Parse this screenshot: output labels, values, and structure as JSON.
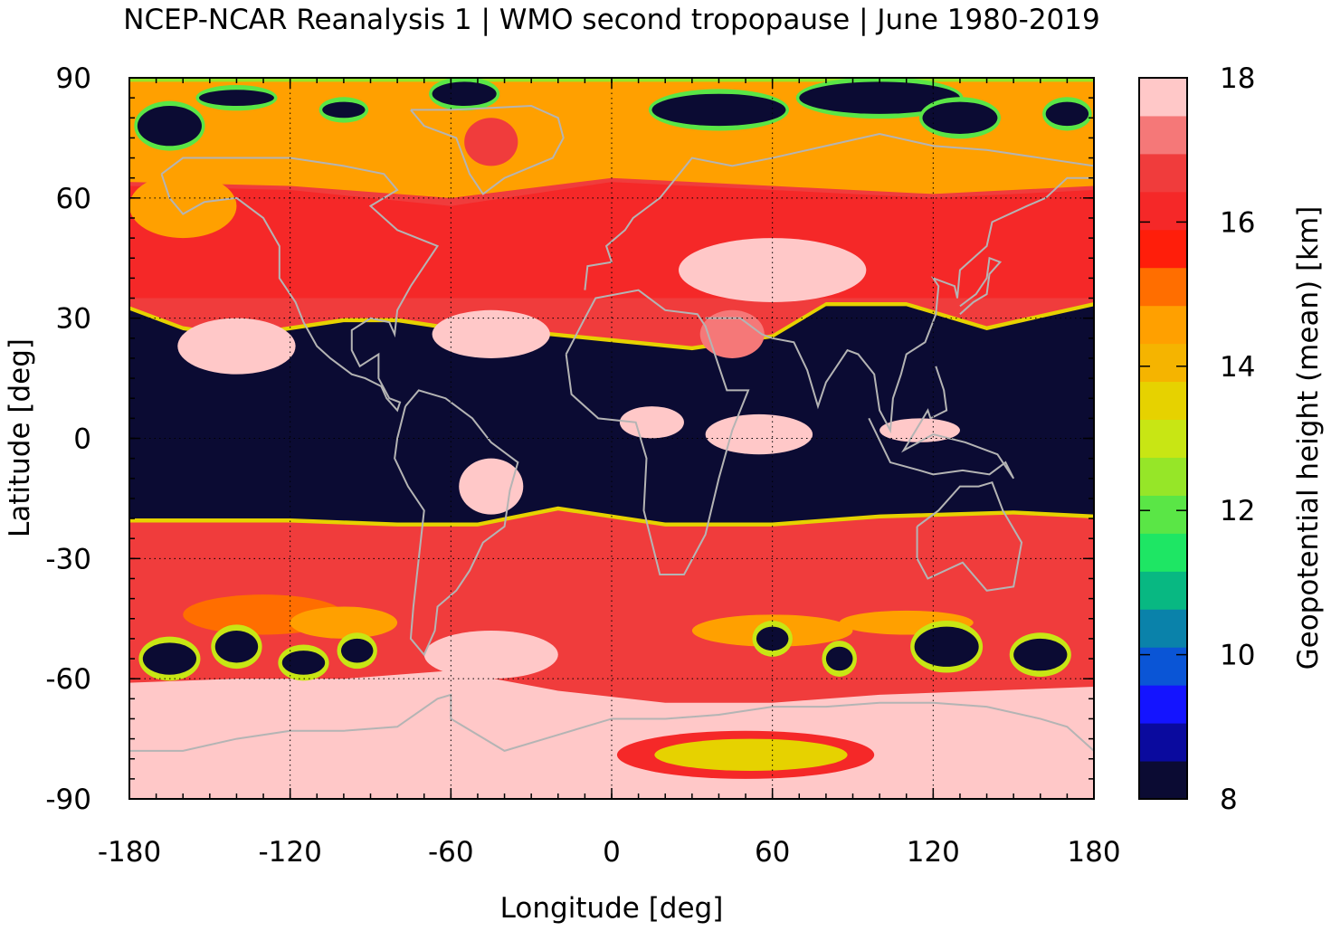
{
  "chart_data": {
    "type": "heatmap",
    "title": "NCEP-NCAR Reanalysis 1 | WMO second tropopause | June 1980-2019",
    "xlabel": "Longitude [deg]",
    "ylabel": "Latitude [deg]",
    "xlim": [
      -180,
      180
    ],
    "ylim": [
      -90,
      90
    ],
    "xticks": [
      -180,
      -120,
      -60,
      0,
      60,
      120,
      180
    ],
    "xtick_labels": [
      "-180",
      "-120",
      "-60",
      "0",
      "60",
      "120",
      "180"
    ],
    "yticks": [
      -90,
      -60,
      -30,
      0,
      30,
      60,
      90
    ],
    "ytick_labels": [
      "-90",
      "-60",
      "-30",
      "0",
      "30",
      "60",
      "90"
    ],
    "grid": true,
    "coastlines": true,
    "colorbar": {
      "label": "Geopotential height (mean) [km]",
      "range": [
        8,
        18
      ],
      "ticks": [
        8,
        10,
        12,
        14,
        16,
        18
      ],
      "tick_labels": [
        "8",
        "10",
        "12",
        "14",
        "16",
        "18"
      ],
      "colors": [
        "#0b0b33",
        "#0a0a9e",
        "#1414ff",
        "#0a55d6",
        "#0a82aa",
        "#08b882",
        "#1ee664",
        "#5ae646",
        "#96e628",
        "#c8e614",
        "#e6d200",
        "#f5b400",
        "#ffa000",
        "#ff6e00",
        "#ff1e0a",
        "#f52828",
        "#f03c3c",
        "#f57878",
        "#ffc8c8"
      ]
    },
    "field_summary": {
      "tropics_30S_to_25N": 8,
      "arctic_above_75N": 14.5,
      "north_midlatitudes_35N_to_60N": 16.3,
      "south_midlatitudes_25S_to_45S": 16.4,
      "antarctic_below_60S": 17.6,
      "tropical_high_patches": 18,
      "east_antarctic_min_ring": 13.5
    }
  }
}
